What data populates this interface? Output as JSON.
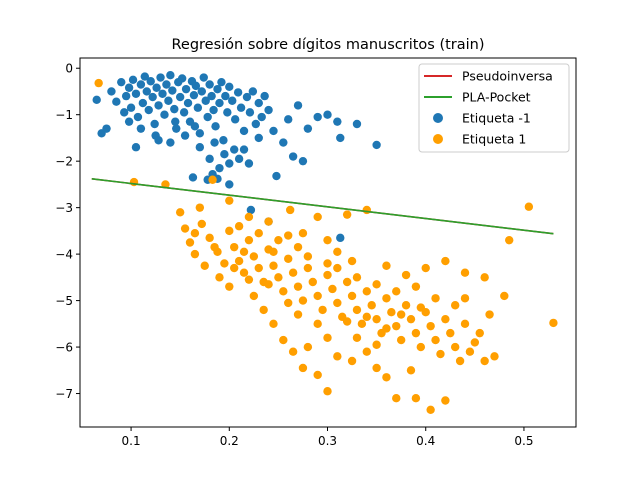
{
  "chart_data": {
    "type": "scatter",
    "title": "Regresión sobre dígitos manuscritos (train)",
    "xlabel": "",
    "ylabel": "",
    "xlim": [
      0.048,
      0.553
    ],
    "ylim": [
      -7.72,
      0.22
    ],
    "xticks": [
      0.1,
      0.2,
      0.3,
      0.4,
      0.5
    ],
    "yticks": [
      0,
      -1,
      -2,
      -3,
      -4,
      -5,
      -6,
      -7
    ],
    "xtick_labels": [
      "0.1",
      "0.2",
      "0.3",
      "0.4",
      "0.5"
    ],
    "ytick_labels": [
      "0",
      "−1",
      "−2",
      "−3",
      "−4",
      "−5",
      "−6",
      "−7"
    ],
    "grid": false,
    "legend_position": "upper right",
    "lines": [
      {
        "name": "Pseudoinversa",
        "color": "#d62728",
        "x": [
          0.06,
          0.53
        ],
        "y": [
          -2.38,
          -3.56
        ]
      },
      {
        "name": "PLA-Pocket",
        "color": "#2ca02c",
        "x": [
          0.06,
          0.53
        ],
        "y": [
          -2.38,
          -3.56
        ]
      }
    ],
    "scatter_series": [
      {
        "name": "Etiqueta -1",
        "color": "#1f77b4",
        "points": [
          [
            0.065,
            -0.68
          ],
          [
            0.08,
            -0.5
          ],
          [
            0.085,
            -0.72
          ],
          [
            0.09,
            -0.3
          ],
          [
            0.093,
            -0.95
          ],
          [
            0.095,
            -0.6
          ],
          [
            0.098,
            -0.42
          ],
          [
            0.1,
            -0.85
          ],
          [
            0.102,
            -0.25
          ],
          [
            0.105,
            -0.55
          ],
          [
            0.107,
            -1.05
          ],
          [
            0.11,
            -0.35
          ],
          [
            0.112,
            -0.75
          ],
          [
            0.114,
            -0.18
          ],
          [
            0.116,
            -0.5
          ],
          [
            0.118,
            -0.9
          ],
          [
            0.12,
            -0.28
          ],
          [
            0.122,
            -0.62
          ],
          [
            0.124,
            -1.2
          ],
          [
            0.126,
            -0.42
          ],
          [
            0.128,
            -0.8
          ],
          [
            0.13,
            -0.2
          ],
          [
            0.132,
            -0.55
          ],
          [
            0.134,
            -1.0
          ],
          [
            0.136,
            -0.35
          ],
          [
            0.138,
            -0.7
          ],
          [
            0.14,
            -0.15
          ],
          [
            0.142,
            -0.48
          ],
          [
            0.144,
            -0.88
          ],
          [
            0.146,
            -1.3
          ],
          [
            0.148,
            -0.3
          ],
          [
            0.15,
            -0.62
          ],
          [
            0.152,
            -0.22
          ],
          [
            0.154,
            -0.95
          ],
          [
            0.156,
            -0.45
          ],
          [
            0.158,
            -0.75
          ],
          [
            0.16,
            -1.15
          ],
          [
            0.162,
            -0.28
          ],
          [
            0.164,
            -0.58
          ],
          [
            0.166,
            -0.38
          ],
          [
            0.168,
            -0.85
          ],
          [
            0.17,
            -1.4
          ],
          [
            0.172,
            -0.5
          ],
          [
            0.174,
            -0.2
          ],
          [
            0.176,
            -0.7
          ],
          [
            0.178,
            -1.05
          ],
          [
            0.18,
            -0.35
          ],
          [
            0.182,
            -0.6
          ],
          [
            0.184,
            -0.9
          ],
          [
            0.186,
            -1.25
          ],
          [
            0.188,
            -0.45
          ],
          [
            0.19,
            -0.75
          ],
          [
            0.192,
            -0.3
          ],
          [
            0.194,
            -1.55
          ],
          [
            0.196,
            -0.6
          ],
          [
            0.198,
            -0.95
          ],
          [
            0.2,
            -0.4
          ],
          [
            0.203,
            -0.7
          ],
          [
            0.206,
            -1.1
          ],
          [
            0.209,
            -0.52
          ],
          [
            0.212,
            -0.85
          ],
          [
            0.215,
            -1.35
          ],
          [
            0.218,
            -0.62
          ],
          [
            0.221,
            -0.95
          ],
          [
            0.224,
            -0.5
          ],
          [
            0.227,
            -1.2
          ],
          [
            0.23,
            -0.75
          ],
          [
            0.233,
            -1.05
          ],
          [
            0.236,
            -0.6
          ],
          [
            0.24,
            -0.9
          ],
          [
            0.11,
            -1.3
          ],
          [
            0.125,
            -1.45
          ],
          [
            0.14,
            -1.6
          ],
          [
            0.155,
            -1.45
          ],
          [
            0.17,
            -1.7
          ],
          [
            0.185,
            -1.6
          ],
          [
            0.195,
            -1.85
          ],
          [
            0.205,
            -1.75
          ],
          [
            0.2,
            -2.05
          ],
          [
            0.19,
            -2.15
          ],
          [
            0.21,
            -1.95
          ],
          [
            0.22,
            -2.05
          ],
          [
            0.23,
            -1.5
          ],
          [
            0.245,
            -1.35
          ],
          [
            0.26,
            -1.1
          ],
          [
            0.27,
            -0.8
          ],
          [
            0.28,
            -1.3
          ],
          [
            0.29,
            -1.05
          ],
          [
            0.3,
            -1.0
          ],
          [
            0.31,
            -1.15
          ],
          [
            0.313,
            -1.5
          ],
          [
            0.33,
            -1.2
          ],
          [
            0.35,
            -1.65
          ],
          [
            0.07,
            -1.4
          ],
          [
            0.075,
            -1.3
          ],
          [
            0.105,
            -1.7
          ],
          [
            0.163,
            -2.35
          ],
          [
            0.183,
            -2.28
          ],
          [
            0.188,
            -2.38
          ],
          [
            0.2,
            -2.5
          ],
          [
            0.248,
            -2.32
          ],
          [
            0.275,
            -2.0
          ],
          [
            0.265,
            -1.9
          ],
          [
            0.255,
            -1.6
          ],
          [
            0.222,
            -3.05
          ],
          [
            0.24,
            -3.3
          ],
          [
            0.313,
            -3.65
          ],
          [
            0.178,
            -2.4
          ],
          [
            0.128,
            -1.55
          ],
          [
            0.145,
            -1.15
          ],
          [
            0.098,
            -1.15
          ],
          [
            0.215,
            -1.75
          ],
          [
            0.18,
            -1.95
          ],
          [
            0.165,
            -1.25
          ]
        ]
      },
      {
        "name": "Etiqueta 1",
        "color": "#ff9f00",
        "points": [
          [
            0.067,
            -0.32
          ],
          [
            0.103,
            -2.45
          ],
          [
            0.135,
            -2.5
          ],
          [
            0.17,
            -3.0
          ],
          [
            0.183,
            -2.4
          ],
          [
            0.2,
            -2.85
          ],
          [
            0.22,
            -3.2
          ],
          [
            0.24,
            -3.3
          ],
          [
            0.262,
            -3.05
          ],
          [
            0.275,
            -3.55
          ],
          [
            0.29,
            -3.2
          ],
          [
            0.3,
            -3.7
          ],
          [
            0.32,
            -3.15
          ],
          [
            0.34,
            -3.05
          ],
          [
            0.505,
            -2.98
          ],
          [
            0.485,
            -3.7
          ],
          [
            0.15,
            -3.1
          ],
          [
            0.155,
            -3.45
          ],
          [
            0.16,
            -3.75
          ],
          [
            0.165,
            -4.0
          ],
          [
            0.172,
            -3.35
          ],
          [
            0.18,
            -3.65
          ],
          [
            0.188,
            -3.95
          ],
          [
            0.195,
            -4.2
          ],
          [
            0.2,
            -3.5
          ],
          [
            0.205,
            -3.85
          ],
          [
            0.21,
            -4.15
          ],
          [
            0.215,
            -4.4
          ],
          [
            0.22,
            -3.7
          ],
          [
            0.225,
            -4.05
          ],
          [
            0.23,
            -4.3
          ],
          [
            0.235,
            -4.6
          ],
          [
            0.24,
            -3.9
          ],
          [
            0.245,
            -4.25
          ],
          [
            0.25,
            -4.5
          ],
          [
            0.255,
            -4.8
          ],
          [
            0.26,
            -4.1
          ],
          [
            0.265,
            -4.4
          ],
          [
            0.27,
            -4.7
          ],
          [
            0.275,
            -5.0
          ],
          [
            0.28,
            -4.3
          ],
          [
            0.285,
            -4.6
          ],
          [
            0.29,
            -4.9
          ],
          [
            0.295,
            -5.2
          ],
          [
            0.3,
            -4.45
          ],
          [
            0.305,
            -4.75
          ],
          [
            0.31,
            -5.05
          ],
          [
            0.315,
            -5.35
          ],
          [
            0.32,
            -4.6
          ],
          [
            0.325,
            -4.9
          ],
          [
            0.33,
            -5.2
          ],
          [
            0.335,
            -5.5
          ],
          [
            0.34,
            -4.8
          ],
          [
            0.345,
            -5.1
          ],
          [
            0.35,
            -5.4
          ],
          [
            0.355,
            -5.7
          ],
          [
            0.36,
            -4.95
          ],
          [
            0.365,
            -5.25
          ],
          [
            0.37,
            -5.55
          ],
          [
            0.375,
            -5.85
          ],
          [
            0.38,
            -5.1
          ],
          [
            0.385,
            -5.4
          ],
          [
            0.39,
            -5.7
          ],
          [
            0.395,
            -6.0
          ],
          [
            0.4,
            -5.25
          ],
          [
            0.405,
            -5.55
          ],
          [
            0.41,
            -5.85
          ],
          [
            0.415,
            -6.15
          ],
          [
            0.42,
            -5.4
          ],
          [
            0.425,
            -5.7
          ],
          [
            0.43,
            -6.0
          ],
          [
            0.44,
            -5.5
          ],
          [
            0.45,
            -5.9
          ],
          [
            0.455,
            -5.7
          ],
          [
            0.46,
            -6.3
          ],
          [
            0.48,
            -4.9
          ],
          [
            0.53,
            -5.48
          ],
          [
            0.35,
            -6.45
          ],
          [
            0.36,
            -6.65
          ],
          [
            0.37,
            -7.1
          ],
          [
            0.385,
            -6.5
          ],
          [
            0.39,
            -7.1
          ],
          [
            0.405,
            -7.35
          ],
          [
            0.42,
            -7.15
          ],
          [
            0.3,
            -6.95
          ],
          [
            0.29,
            -6.6
          ],
          [
            0.275,
            -6.45
          ],
          [
            0.245,
            -5.5
          ],
          [
            0.255,
            -5.85
          ],
          [
            0.265,
            -6.1
          ],
          [
            0.28,
            -6.0
          ],
          [
            0.31,
            -6.2
          ],
          [
            0.325,
            -6.3
          ],
          [
            0.33,
            -5.8
          ],
          [
            0.225,
            -4.9
          ],
          [
            0.235,
            -5.2
          ],
          [
            0.19,
            -4.5
          ],
          [
            0.2,
            -4.7
          ],
          [
            0.175,
            -4.25
          ],
          [
            0.185,
            -3.85
          ],
          [
            0.21,
            -3.4
          ],
          [
            0.23,
            -3.55
          ],
          [
            0.25,
            -3.7
          ],
          [
            0.27,
            -3.85
          ],
          [
            0.31,
            -3.95
          ],
          [
            0.325,
            -4.15
          ],
          [
            0.36,
            -4.25
          ],
          [
            0.38,
            -4.45
          ],
          [
            0.4,
            -4.3
          ],
          [
            0.42,
            -4.15
          ],
          [
            0.44,
            -4.4
          ],
          [
            0.46,
            -4.5
          ],
          [
            0.39,
            -4.7
          ],
          [
            0.41,
            -4.95
          ],
          [
            0.43,
            -5.1
          ],
          [
            0.435,
            -6.3
          ],
          [
            0.445,
            -6.1
          ],
          [
            0.47,
            -6.2
          ],
          [
            0.465,
            -5.3
          ],
          [
            0.44,
            -4.95
          ],
          [
            0.29,
            -5.5
          ],
          [
            0.3,
            -5.8
          ],
          [
            0.34,
            -6.1
          ],
          [
            0.35,
            -5.95
          ],
          [
            0.27,
            -5.3
          ],
          [
            0.26,
            -5.05
          ],
          [
            0.24,
            -4.65
          ],
          [
            0.22,
            -4.55
          ],
          [
            0.31,
            -4.3
          ],
          [
            0.33,
            -4.5
          ],
          [
            0.35,
            -4.65
          ],
          [
            0.37,
            -4.8
          ],
          [
            0.28,
            -4.05
          ],
          [
            0.3,
            -4.2
          ],
          [
            0.26,
            -3.6
          ],
          [
            0.245,
            -3.95
          ],
          [
            0.165,
            -3.55
          ],
          [
            0.205,
            -4.3
          ],
          [
            0.215,
            -3.95
          ],
          [
            0.375,
            -5.3
          ],
          [
            0.395,
            -5.15
          ],
          [
            0.36,
            -5.6
          ],
          [
            0.34,
            -5.35
          ],
          [
            0.32,
            -5.45
          ]
        ]
      }
    ]
  },
  "legend": {
    "items": [
      {
        "label": "Pseudoinversa",
        "kind": "line",
        "color": "#d62728"
      },
      {
        "label": "PLA-Pocket",
        "kind": "line",
        "color": "#2ca02c"
      },
      {
        "label": "Etiqueta -1",
        "kind": "dot",
        "color": "#1f77b4"
      },
      {
        "label": "Etiqueta 1",
        "kind": "dot",
        "color": "#ff9f00"
      }
    ]
  }
}
